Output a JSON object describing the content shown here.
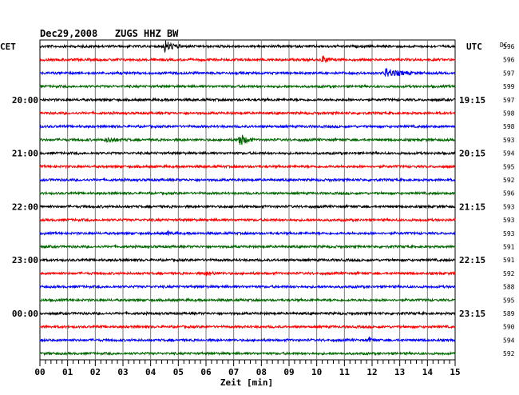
{
  "chart_data": {
    "type": "line",
    "title": "Dec29,2008   ZUGS HHZ BW",
    "left_timezone": "CET",
    "right_timezone": "UTC",
    "dc_label": "DC",
    "xlabel": "Zeit [min]",
    "xlim": [
      0,
      15
    ],
    "x_ticks": [
      "00",
      "01",
      "02",
      "03",
      "04",
      "05",
      "06",
      "07",
      "08",
      "09",
      "10",
      "11",
      "12",
      "13",
      "14",
      "15"
    ],
    "left_hour_labels": [
      {
        "row": 4,
        "label": "20:00"
      },
      {
        "row": 8,
        "label": "21:00"
      },
      {
        "row": 12,
        "label": "22:00"
      },
      {
        "row": 16,
        "label": "23:00"
      },
      {
        "row": 20,
        "label": "00:00"
      }
    ],
    "right_hour_labels": [
      {
        "row": 4,
        "label": "19:15"
      },
      {
        "row": 8,
        "label": "20:15"
      },
      {
        "row": 12,
        "label": "21:15"
      },
      {
        "row": 16,
        "label": "22:15"
      },
      {
        "row": 20,
        "label": "23:15"
      }
    ],
    "trace_colors": [
      "#000000",
      "#ff0000",
      "#0000ff",
      "#006600"
    ],
    "dc_offsets": [
      "596",
      "596",
      "597",
      "599",
      "597",
      "598",
      "598",
      "593",
      "594",
      "595",
      "592",
      "596",
      "593",
      "593",
      "593",
      "591",
      "591",
      "592",
      "588",
      "595",
      "589",
      "590",
      "594",
      "592"
    ],
    "events": [
      {
        "row": 0,
        "minute": 4.5,
        "amplitude": 8,
        "width_min": 0.25
      },
      {
        "row": 1,
        "minute": 10.2,
        "amplitude": 6,
        "width_min": 0.15
      },
      {
        "row": 2,
        "minute": 12.5,
        "amplitude": 5,
        "width_min": 0.45
      },
      {
        "row": 7,
        "minute": 7.2,
        "amplitude": 9,
        "width_min": 0.2
      },
      {
        "row": 7,
        "minute": 2.4,
        "amplitude": 2.5,
        "width_min": 0.35
      },
      {
        "row": 17,
        "minute": 6.0,
        "amplitude": 2,
        "width_min": 0.3
      },
      {
        "row": 14,
        "minute": 4.6,
        "amplitude": 2,
        "width_min": 0.15
      },
      {
        "row": 22,
        "minute": 11.9,
        "amplitude": 3,
        "width_min": 0.12
      }
    ]
  }
}
